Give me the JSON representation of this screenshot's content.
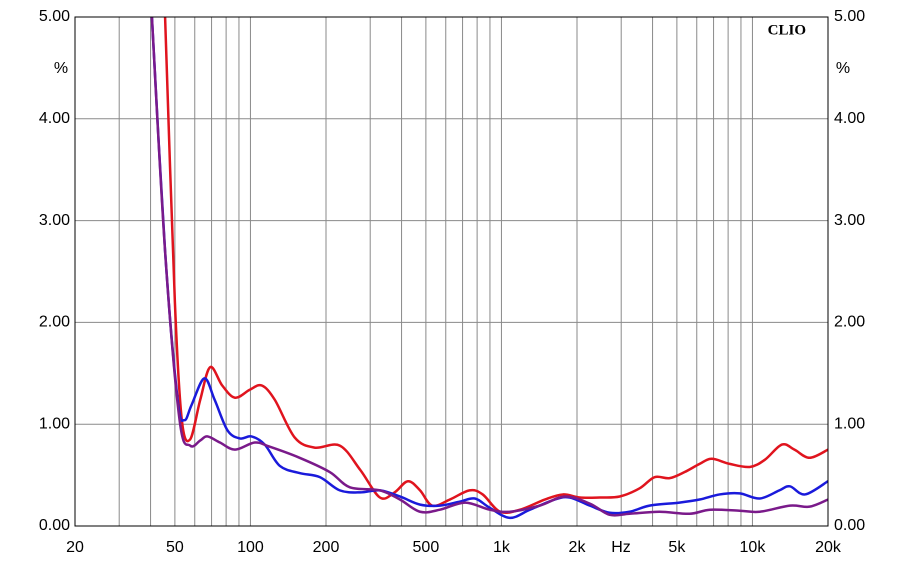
{
  "chart_data": {
    "type": "line",
    "brand": "CLIO",
    "xlabel": "Hz",
    "ylabel": "%",
    "y2label": "%",
    "xscale": "log",
    "grid": true,
    "xlim": [
      20,
      20000
    ],
    "xticks": [
      20,
      50,
      100,
      200,
      500,
      {
        "value": 1000,
        "label": "1k"
      },
      {
        "value": 2000,
        "label": "2k"
      },
      {
        "value": 5000,
        "label": "5k"
      },
      {
        "value": 10000,
        "label": "10k"
      },
      {
        "value": 20000,
        "label": "20k"
      }
    ],
    "x_minor_ticks": [
      30,
      40,
      60,
      70,
      80,
      90,
      300,
      400,
      600,
      700,
      800,
      900,
      3000,
      4000,
      6000,
      7000,
      8000,
      9000
    ],
    "ylim": [
      0,
      5
    ],
    "yticks": [
      {
        "value": 0,
        "label": "0.00"
      },
      {
        "value": 1,
        "label": "1.00"
      },
      {
        "value": 2,
        "label": "2.00"
      },
      {
        "value": 3,
        "label": "3.00"
      },
      {
        "value": 4,
        "label": "4.00"
      },
      {
        "value": 5,
        "label": "5.00"
      }
    ],
    "y2lim": [
      0,
      5
    ],
    "y2ticks": [
      {
        "value": 0,
        "label": "0.00"
      },
      {
        "value": 1,
        "label": "1.00"
      },
      {
        "value": 2,
        "label": "2.00"
      },
      {
        "value": 3,
        "label": "3.00"
      },
      {
        "value": 4,
        "label": "4.00"
      },
      {
        "value": 5,
        "label": "5.00"
      }
    ],
    "series": [
      {
        "color": "#e0141e",
        "x": [
          45.7,
          50,
          53.3,
          57.5,
          63.1,
          69.1,
          77.2,
          86.8,
          99.6,
          111,
          125,
          150,
          180,
          227,
          274,
          328,
          375,
          424,
          474,
          530,
          623,
          746,
          842,
          987,
          1185,
          1489,
          1758,
          2055,
          2466,
          2960,
          3552,
          4075,
          4680,
          5370,
          6160,
          6880,
          8120,
          9750,
          11200,
          13100,
          14700,
          16900,
          20000
        ],
        "values": [
          5.0,
          2.2,
          1.04,
          0.85,
          1.24,
          1.56,
          1.38,
          1.26,
          1.34,
          1.38,
          1.24,
          0.87,
          0.77,
          0.79,
          0.55,
          0.28,
          0.33,
          0.44,
          0.35,
          0.2,
          0.26,
          0.35,
          0.31,
          0.14,
          0.16,
          0.26,
          0.31,
          0.28,
          0.28,
          0.29,
          0.37,
          0.48,
          0.47,
          0.53,
          0.61,
          0.66,
          0.61,
          0.58,
          0.65,
          0.8,
          0.75,
          0.67,
          0.75
        ]
      },
      {
        "color": "#1a1adb",
        "x": [
          40.5,
          45.7,
          51.3,
          54.6,
          58.3,
          65.5,
          72,
          81,
          90.8,
          101,
          114,
          131,
          157,
          189,
          227,
          274,
          328,
          394,
          474,
          569,
          684,
          784,
          897,
          1080,
          1298,
          1630,
          1870,
          2250,
          2700,
          3240,
          3890,
          5120,
          6160,
          7400,
          8890,
          10700,
          12800,
          14100,
          16200,
          20000
        ],
        "values": [
          5.0,
          2.7,
          1.24,
          1.04,
          1.19,
          1.45,
          1.24,
          0.94,
          0.86,
          0.88,
          0.8,
          0.59,
          0.52,
          0.48,
          0.35,
          0.33,
          0.35,
          0.29,
          0.21,
          0.2,
          0.24,
          0.27,
          0.18,
          0.08,
          0.16,
          0.26,
          0.28,
          0.2,
          0.13,
          0.14,
          0.2,
          0.23,
          0.26,
          0.31,
          0.32,
          0.27,
          0.35,
          0.39,
          0.31,
          0.44
        ]
      },
      {
        "color": "#7a1a8a",
        "x": [
          40.5,
          45.7,
          52.2,
          57.5,
          63.1,
          67.3,
          75.6,
          86.8,
          104,
          119,
          157,
          207,
          249,
          328,
          394,
          474,
          569,
          717,
          897,
          1080,
          1420,
          1790,
          2250,
          2700,
          3240,
          4260,
          5620,
          6780,
          8890,
          10700,
          14100,
          16900,
          20000
        ],
        "values": [
          5.0,
          2.7,
          1.04,
          0.79,
          0.84,
          0.88,
          0.82,
          0.75,
          0.82,
          0.78,
          0.67,
          0.53,
          0.38,
          0.35,
          0.26,
          0.14,
          0.16,
          0.23,
          0.16,
          0.14,
          0.2,
          0.29,
          0.22,
          0.11,
          0.12,
          0.14,
          0.12,
          0.16,
          0.15,
          0.14,
          0.2,
          0.19,
          0.26
        ]
      }
    ]
  }
}
